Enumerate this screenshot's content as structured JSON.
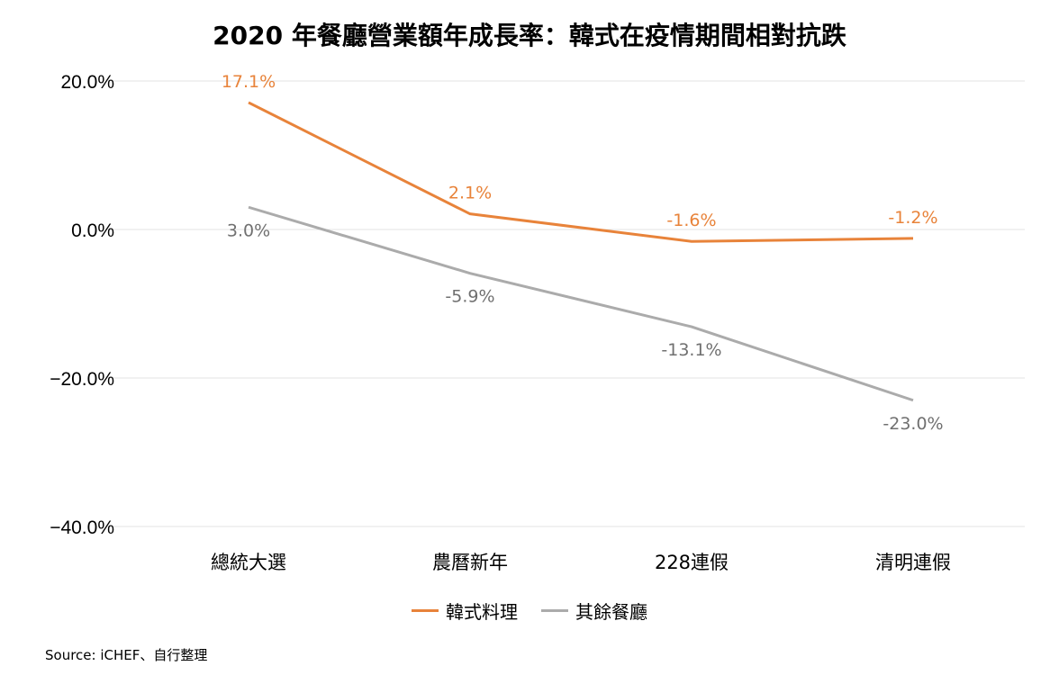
{
  "chart_data": {
    "type": "line",
    "title": "2020 年餐廳營業額年成長率：韓式在疫情期間相對抗跌",
    "categories": [
      "總統大選",
      "農曆新年",
      "228連假",
      "清明連假"
    ],
    "series": [
      {
        "name": "韓式料理",
        "color": "#E8833A",
        "values": [
          17.1,
          2.1,
          -1.6,
          -1.2
        ],
        "labels": [
          "17.1%",
          "2.1%",
          "-1.6%",
          "-1.2%"
        ]
      },
      {
        "name": "其餘餐廳",
        "color": "#ABABAB",
        "values": [
          3.0,
          -5.9,
          -13.1,
          -23.0
        ],
        "labels": [
          "3.0%",
          "-5.9%",
          "-13.1%",
          "-23.0%"
        ]
      }
    ],
    "yticks": [
      20,
      0,
      -20,
      -40
    ],
    "ytick_labels": [
      "20.0%",
      "0.0%",
      "−20.0%",
      "−40.0%"
    ],
    "ylim": [
      -40,
      20
    ],
    "grid": true,
    "legend": "bottom-center",
    "xlabel": "",
    "ylabel": ""
  },
  "source": "Source: iCHEF、自行整理"
}
